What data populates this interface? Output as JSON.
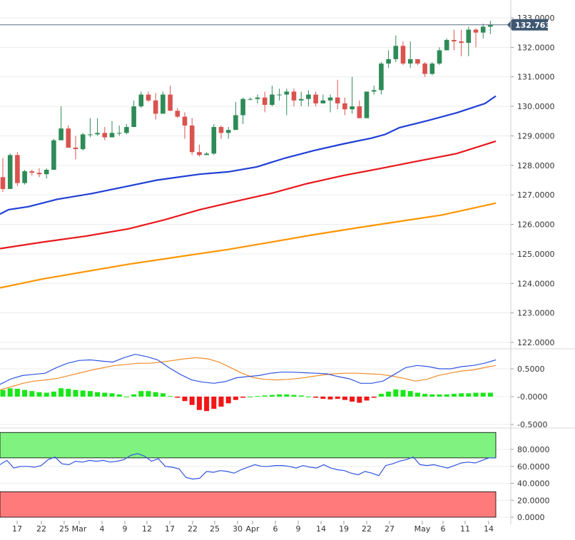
{
  "chart_data": [
    {
      "type": "candlestick",
      "panel": "price",
      "current_price": "132.7630",
      "y_ticks": [
        "133.0000",
        "132.0000",
        "131.0000",
        "130.0000",
        "129.0000",
        "128.0000",
        "127.0000",
        "126.0000",
        "125.0000",
        "124.0000",
        "123.0000",
        "122.0000"
      ],
      "ylim": [
        121.85,
        133.3
      ],
      "x_labels": [
        "17",
        "22",
        "25",
        "Mar",
        "4",
        "9",
        "12",
        "17",
        "22",
        "25",
        "30",
        "Apr",
        "6",
        "9",
        "14",
        "19",
        "22",
        "27",
        "May",
        "6",
        "11",
        "14"
      ],
      "grid": true,
      "colors": {
        "up": "#2e8b57",
        "down": "#d9534f",
        "ma_fast": "#1f3fd6",
        "ma_mid": "#e8171b",
        "ma_slow": "#ff9500",
        "price_line": "#5a6f86",
        "tag": "#3f5872"
      },
      "candles": [
        [
          127.6,
          128.25,
          127.1,
          127.2
        ],
        [
          127.2,
          128.4,
          127.2,
          128.35
        ],
        [
          128.35,
          128.45,
          127.3,
          127.4
        ],
        [
          127.4,
          127.85,
          127.35,
          127.8
        ],
        [
          127.8,
          127.85,
          127.65,
          127.75
        ],
        [
          127.75,
          127.9,
          127.6,
          127.7
        ],
        [
          127.7,
          127.9,
          127.55,
          127.85
        ],
        [
          127.85,
          128.9,
          127.85,
          128.85
        ],
        [
          128.85,
          130.0,
          128.9,
          129.25
        ],
        [
          129.25,
          129.35,
          128.6,
          128.6
        ],
        [
          128.6,
          129.0,
          128.2,
          128.55
        ],
        [
          128.55,
          129.1,
          128.5,
          129.05
        ],
        [
          129.05,
          129.6,
          128.95,
          129.05
        ],
        [
          129.05,
          129.6,
          129.0,
          129.1
        ],
        [
          129.1,
          129.3,
          128.85,
          128.95
        ],
        [
          128.95,
          129.5,
          128.95,
          129.1
        ],
        [
          129.1,
          129.35,
          129.0,
          129.1
        ],
        [
          129.1,
          129.4,
          129.05,
          129.3
        ],
        [
          129.3,
          130.2,
          129.3,
          130.0
        ],
        [
          130.0,
          130.5,
          129.95,
          130.4
        ],
        [
          130.4,
          130.5,
          130.15,
          130.2
        ],
        [
          130.2,
          130.45,
          129.55,
          129.75
        ],
        [
          129.75,
          130.5,
          129.85,
          130.4
        ],
        [
          130.4,
          130.7,
          129.85,
          129.85
        ],
        [
          129.85,
          129.95,
          129.6,
          129.65
        ],
        [
          129.65,
          129.8,
          128.9,
          129.35
        ],
        [
          129.35,
          129.6,
          128.35,
          128.45
        ],
        [
          128.45,
          128.7,
          128.3,
          128.35
        ],
        [
          128.35,
          128.45,
          128.35,
          128.4
        ],
        [
          128.4,
          129.4,
          128.35,
          129.3
        ],
        [
          129.3,
          129.35,
          128.9,
          129.1
        ],
        [
          129.1,
          129.3,
          128.9,
          129.2
        ],
        [
          129.2,
          130.15,
          129.2,
          129.7
        ],
        [
          129.7,
          130.3,
          129.4,
          130.25
        ],
        [
          130.25,
          130.3,
          130.2,
          130.25
        ],
        [
          130.25,
          130.4,
          130.1,
          130.3
        ],
        [
          130.3,
          130.5,
          129.8,
          130.05
        ],
        [
          130.05,
          130.7,
          130.0,
          130.4
        ],
        [
          130.4,
          130.6,
          130.2,
          130.4
        ],
        [
          130.4,
          130.6,
          129.7,
          130.5
        ],
        [
          130.5,
          130.6,
          130.0,
          130.2
        ],
        [
          130.2,
          130.5,
          130.0,
          130.25
        ],
        [
          130.25,
          130.55,
          130.0,
          130.4
        ],
        [
          130.4,
          130.5,
          130.0,
          130.1
        ],
        [
          130.1,
          130.4,
          130.1,
          130.2
        ],
        [
          130.2,
          130.4,
          129.8,
          130.3
        ],
        [
          130.3,
          130.9,
          129.9,
          130.1
        ],
        [
          130.1,
          130.3,
          129.7,
          129.9
        ],
        [
          129.9,
          131.0,
          129.75,
          130.0
        ],
        [
          130.0,
          130.2,
          129.6,
          129.6
        ],
        [
          129.6,
          130.5,
          129.6,
          130.5
        ],
        [
          130.5,
          130.7,
          130.4,
          130.55
        ],
        [
          130.55,
          131.5,
          130.4,
          131.45
        ],
        [
          131.45,
          131.9,
          131.3,
          131.6
        ],
        [
          131.6,
          132.4,
          131.5,
          132.05
        ],
        [
          132.05,
          132.2,
          131.4,
          131.45
        ],
        [
          131.45,
          132.2,
          131.3,
          131.6
        ],
        [
          131.6,
          131.6,
          131.4,
          131.45
        ],
        [
          131.45,
          131.5,
          131.0,
          131.1
        ],
        [
          131.1,
          131.5,
          131.05,
          131.45
        ],
        [
          131.45,
          132.0,
          131.4,
          131.9
        ],
        [
          131.9,
          132.3,
          131.9,
          132.25
        ],
        [
          132.25,
          132.6,
          131.9,
          132.2
        ],
        [
          132.2,
          132.6,
          131.7,
          132.15
        ],
        [
          132.15,
          132.7,
          131.7,
          132.6
        ],
        [
          132.6,
          132.65,
          132.0,
          132.5
        ],
        [
          132.5,
          132.8,
          132.3,
          132.7
        ],
        [
          132.7,
          132.9,
          132.45,
          132.76
        ]
      ],
      "moving_averages": [
        {
          "name": "",
          "color": "#1f3fd6",
          "points": [
            [
              0,
              126.35
            ],
            [
              12,
              126.5
            ],
            [
              40,
              126.6
            ],
            [
              80,
              126.85
            ],
            [
              130,
              127.05
            ],
            [
              180,
              127.3
            ],
            [
              220,
              127.5
            ],
            [
              280,
              127.7
            ],
            [
              320,
              127.78
            ],
            [
              360,
              127.95
            ],
            [
              400,
              128.25
            ],
            [
              440,
              128.5
            ],
            [
              480,
              128.72
            ],
            [
              520,
              128.92
            ],
            [
              540,
              129.05
            ],
            [
              560,
              129.28
            ],
            [
              600,
              129.52
            ],
            [
              640,
              129.78
            ],
            [
              680,
              130.1
            ],
            [
              695,
              130.35
            ]
          ]
        },
        {
          "name": "",
          "color": "#e8171b",
          "points": [
            [
              0,
              125.18
            ],
            [
              60,
              125.4
            ],
            [
              120,
              125.6
            ],
            [
              180,
              125.85
            ],
            [
              230,
              126.15
            ],
            [
              280,
              126.5
            ],
            [
              330,
              126.78
            ],
            [
              380,
              127.05
            ],
            [
              430,
              127.38
            ],
            [
              480,
              127.65
            ],
            [
              530,
              127.88
            ],
            [
              580,
              128.12
            ],
            [
              640,
              128.4
            ],
            [
              695,
              128.82
            ]
          ]
        },
        {
          "name": "",
          "color": "#ff9500",
          "points": [
            [
              0,
              123.85
            ],
            [
              60,
              124.15
            ],
            [
              120,
              124.4
            ],
            [
              180,
              124.65
            ],
            [
              250,
              124.9
            ],
            [
              320,
              125.15
            ],
            [
              380,
              125.4
            ],
            [
              440,
              125.65
            ],
            [
              500,
              125.88
            ],
            [
              560,
              126.1
            ],
            [
              620,
              126.32
            ],
            [
              695,
              126.72
            ]
          ]
        }
      ]
    },
    {
      "type": "macd",
      "panel": "oscillator",
      "y_ticks": [
        "0.5000",
        "-0.0000",
        "-0.5000"
      ],
      "ylim": [
        -0.5,
        0.9
      ],
      "histogram": [
        0.12,
        0.15,
        0.14,
        0.12,
        0.1,
        0.08,
        0.07,
        0.09,
        0.15,
        0.14,
        0.12,
        0.11,
        0.1,
        0.08,
        0.07,
        0.06,
        0.04,
        0.0,
        0.04,
        0.1,
        0.1,
        0.08,
        0.06,
        0.01,
        -0.02,
        -0.08,
        -0.15,
        -0.24,
        -0.26,
        -0.22,
        -0.18,
        -0.12,
        -0.06,
        -0.02,
        0.0,
        0.01,
        0.02,
        0.03,
        0.04,
        0.04,
        0.03,
        0.02,
        0.0,
        -0.02,
        -0.04,
        -0.05,
        -0.04,
        -0.06,
        -0.09,
        -0.11,
        -0.07,
        -0.02,
        0.05,
        0.09,
        0.13,
        0.12,
        0.1,
        0.07,
        0.05,
        0.04,
        0.04,
        0.04,
        0.05,
        0.06,
        0.06,
        0.07,
        0.07,
        0.07
      ],
      "signal_line": [
        0.12,
        0.18,
        0.24,
        0.28,
        0.3,
        0.33,
        0.38,
        0.43,
        0.48,
        0.52,
        0.56,
        0.58,
        0.6,
        0.6,
        0.62,
        0.65,
        0.68,
        0.7,
        0.68,
        0.62,
        0.52,
        0.42,
        0.34,
        0.31,
        0.3,
        0.31,
        0.33,
        0.36,
        0.39,
        0.41,
        0.42,
        0.42,
        0.41,
        0.4,
        0.37,
        0.33,
        0.28,
        0.31,
        0.38,
        0.42,
        0.46,
        0.48,
        0.52,
        0.56
      ],
      "macd_line": [
        0.22,
        0.32,
        0.38,
        0.4,
        0.42,
        0.52,
        0.6,
        0.65,
        0.66,
        0.64,
        0.62,
        0.7,
        0.76,
        0.72,
        0.66,
        0.52,
        0.4,
        0.3,
        0.26,
        0.24,
        0.27,
        0.34,
        0.36,
        0.38,
        0.42,
        0.44,
        0.44,
        0.43,
        0.42,
        0.41,
        0.36,
        0.32,
        0.24,
        0.24,
        0.28,
        0.4,
        0.52,
        0.56,
        0.54,
        0.5,
        0.5,
        0.54,
        0.56,
        0.6,
        0.66
      ]
    },
    {
      "type": "line",
      "panel": "rsi",
      "y_ticks": [
        "80.0000",
        "60.0000",
        "40.0000",
        "20.0000",
        "0.0000"
      ],
      "ylim": [
        0,
        100
      ],
      "overbought_band": [
        70,
        100
      ],
      "oversold_band": [
        0,
        30
      ],
      "band_colors": {
        "overbought": "#80f280",
        "oversold": "#ff7b7b"
      },
      "rsi_line": [
        62,
        67,
        58,
        60,
        60,
        59,
        61,
        68,
        71,
        63,
        62,
        66,
        65,
        67,
        66,
        67,
        65,
        66,
        68,
        73,
        75,
        72,
        66,
        69,
        60,
        59,
        57,
        47,
        45,
        46,
        54,
        53,
        55,
        54,
        52,
        56,
        59,
        62,
        60,
        60,
        61,
        61,
        60,
        58,
        61,
        59,
        58,
        62,
        58,
        56,
        55,
        52,
        50,
        54,
        52,
        49,
        61,
        63,
        66,
        68,
        71,
        62,
        61,
        62,
        60,
        58,
        61,
        64,
        65,
        64,
        67,
        70,
        70
      ]
    }
  ]
}
